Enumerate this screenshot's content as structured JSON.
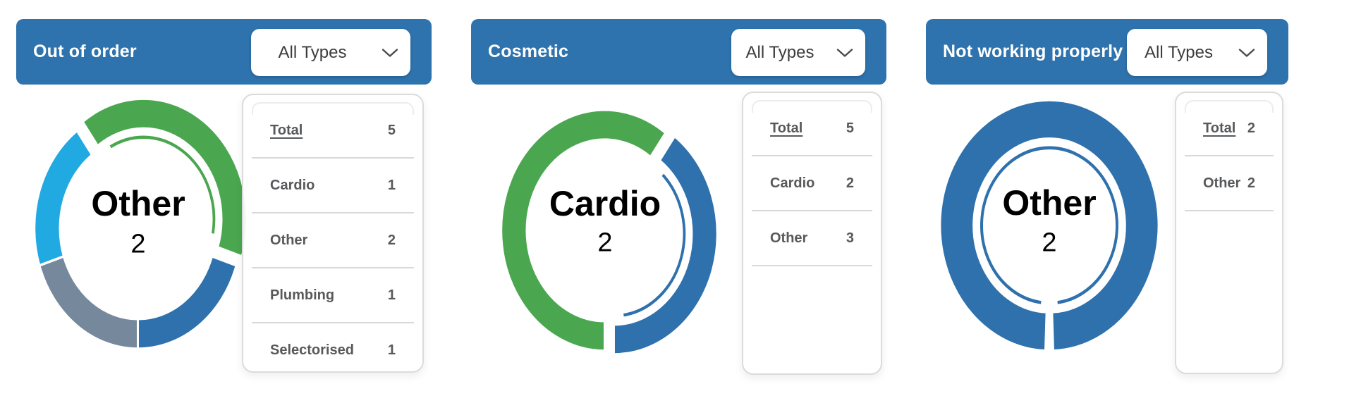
{
  "chart_data": [
    {
      "type": "donut",
      "title": "Out of order",
      "filter_value": "All Types",
      "center": {
        "label": "Other",
        "value": "2"
      },
      "start_angle": 180,
      "slices": [
        {
          "label": "Plumbing",
          "value": 1,
          "color": "#76889b"
        },
        {
          "label": "Selectorised",
          "value": 1,
          "color": "#21a9e1"
        },
        {
          "label": "Other",
          "value": 2,
          "color": "#4aa750",
          "selected": true
        },
        {
          "label": "Cardio",
          "value": 1,
          "color": "#2e71ad"
        }
      ],
      "legend_rows": [
        {
          "label": "Total",
          "value": "5",
          "underline": true,
          "divider": true
        },
        {
          "label": "Cardio",
          "value": "1",
          "divider": true
        },
        {
          "label": "Other",
          "value": "2",
          "divider": true
        },
        {
          "label": "Plumbing",
          "value": "1",
          "divider": true
        },
        {
          "label": "Selectorised",
          "value": "1",
          "divider": false
        }
      ]
    },
    {
      "type": "donut",
      "title": "Cosmetic",
      "filter_value": "All Types",
      "center": {
        "label": "Cardio",
        "value": "2"
      },
      "start_angle": 180,
      "slices": [
        {
          "label": "Other",
          "value": 3,
          "color": "#4aa750"
        },
        {
          "label": "Cardio",
          "value": 2,
          "color": "#2e71ad",
          "selected": true
        }
      ],
      "legend_rows": [
        {
          "label": "Total",
          "value": "5",
          "underline": true,
          "divider": true
        },
        {
          "label": "Cardio",
          "value": "2",
          "divider": true
        },
        {
          "label": "Other",
          "value": "3",
          "divider": true
        }
      ]
    },
    {
      "type": "donut",
      "title": "Not working properly",
      "filter_value": "All Types",
      "center": {
        "label": "Other",
        "value": "2"
      },
      "start_angle": 180,
      "slices": [
        {
          "label": "Other",
          "value": 2,
          "color": "#2e71ad",
          "selected": true
        }
      ],
      "legend_rows": [
        {
          "label": "Total",
          "value": "2",
          "underline": true,
          "divider": true
        },
        {
          "label": "Other",
          "value": "2",
          "divider": true
        }
      ]
    }
  ],
  "colors": {
    "header_blue": "#2e73ad",
    "donut_blue": "#2e71ad",
    "donut_green": "#4aa750",
    "donut_gray": "#76889b",
    "donut_lightblue": "#21a9e1",
    "legend_text": "#58595b"
  }
}
